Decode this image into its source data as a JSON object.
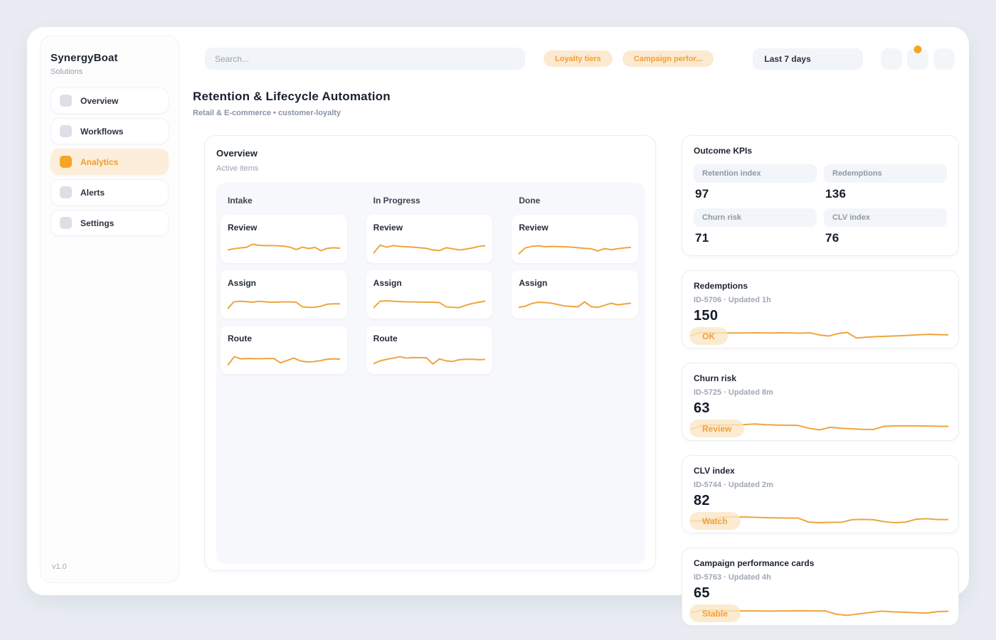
{
  "colors": {
    "accent": "#F0A43C",
    "accent_text": "#EF9D2B",
    "pill_bg": "#FBEAD1",
    "page_bg": "#E9EDF3",
    "board_bg": "#F6F8FB"
  },
  "brand": {
    "name": "SynergyBoat",
    "tagline": "Solutions",
    "version": "v1.0"
  },
  "sidebar": {
    "items": [
      {
        "label": "Overview",
        "active": false
      },
      {
        "label": "Workflows",
        "active": false
      },
      {
        "label": "Analytics",
        "active": true
      },
      {
        "label": "Alerts",
        "active": false
      },
      {
        "label": "Settings",
        "active": false
      }
    ]
  },
  "topbar": {
    "search_placeholder": "Search...",
    "pills": [
      "Loyalty tiers",
      "Campaign perfor..."
    ],
    "range": "Last 7 days"
  },
  "page": {
    "title": "Retention & Lifecycle Automation",
    "subtitle": "Retail & E-commerce • customer-loyalty"
  },
  "board": {
    "title": "Overview",
    "subtitle": "Active items",
    "columns": [
      {
        "name": "Intake",
        "cards": [
          {
            "label": "Review",
            "spark": [
              34,
              40,
              44,
              47,
              63,
              57,
              56,
              56,
              55,
              53,
              48,
              36,
              48,
              41,
              47,
              30,
              42,
              45,
              43
            ]
          },
          {
            "label": "Assign",
            "spark": [
              18,
              52,
              55,
              53,
              50,
              55,
              52,
              50,
              51,
              52,
              52,
              50,
              27,
              24,
              25,
              30,
              40,
              42,
              42
            ]
          },
          {
            "label": "Route",
            "spark": [
              12,
              55,
              44,
              46,
              45,
              45,
              46,
              46,
              24,
              36,
              48,
              34,
              29,
              30,
              35,
              42,
              44,
              43
            ]
          }
        ]
      },
      {
        "name": "In Progress",
        "cards": [
          {
            "label": "Review",
            "spark": [
              18,
              58,
              48,
              56,
              52,
              50,
              48,
              45,
              42,
              34,
              31,
              45,
              40,
              34,
              38,
              44,
              52,
              55
            ]
          },
          {
            "label": "Assign",
            "spark": [
              22,
              55,
              57,
              55,
              53,
              52,
              52,
              51,
              50,
              50,
              48,
              27,
              24,
              23,
              35,
              44,
              50,
              56
            ]
          },
          {
            "label": "Route",
            "spark": [
              20,
              34,
              42,
              48,
              55,
              48,
              51,
              50,
              50,
              18,
              44,
              34,
              31,
              40,
              42,
              42,
              40,
              41
            ]
          }
        ]
      },
      {
        "name": "Done",
        "cards": [
          {
            "label": "Review",
            "spark": [
              14,
              44,
              52,
              55,
              50,
              52,
              51,
              50,
              48,
              45,
              42,
              40,
              29,
              41,
              35,
              40,
              44,
              47
            ]
          },
          {
            "label": "Assign",
            "spark": [
              24,
              30,
              44,
              50,
              48,
              45,
              38,
              31,
              29,
              27,
              52,
              28,
              24,
              34,
              45,
              37,
              41,
              45
            ]
          }
        ]
      }
    ]
  },
  "kpis": {
    "title": "Outcome KPIs",
    "items": [
      {
        "label": "Retention index",
        "value": "97"
      },
      {
        "label": "Redemptions",
        "value": "136"
      },
      {
        "label": "Churn risk",
        "value": "71"
      },
      {
        "label": "CLV index",
        "value": "76"
      }
    ]
  },
  "metrics": [
    {
      "title": "Redemptions",
      "meta": "ID-5706 · Updated 1h",
      "value": "150",
      "badge": "OK",
      "spark": [
        30,
        48,
        46,
        45,
        45,
        45,
        45,
        46,
        45,
        45,
        46,
        45,
        44,
        46,
        34,
        29,
        42,
        48,
        18,
        22,
        25,
        27,
        29,
        31,
        33,
        36,
        38,
        36,
        35
      ]
    },
    {
      "title": "Churn risk",
      "meta": "ID-5725 · Updated 8m",
      "value": "63",
      "badge": "Review",
      "spark": [
        25,
        45,
        48,
        47,
        48,
        50,
        53,
        49,
        47,
        46,
        45,
        30,
        21,
        35,
        30,
        27,
        24,
        23,
        40,
        43,
        43,
        43,
        42,
        41,
        40
      ]
    },
    {
      "title": "CLV index",
      "meta": "ID-5744 · Updated 2m",
      "value": "82",
      "badge": "Watch",
      "spark": [
        28,
        28,
        34,
        50,
        50,
        50,
        48,
        46,
        45,
        44,
        44,
        22,
        19,
        21,
        21,
        35,
        37,
        35,
        25,
        19,
        22,
        38,
        41,
        36,
        36
      ]
    },
    {
      "title": "Campaign performance cards",
      "meta": "ID-5763 · Updated 4h",
      "value": "65",
      "badge": "Stable",
      "spark": [
        33,
        45,
        44,
        43,
        42,
        42,
        42,
        41,
        42,
        42,
        43,
        42,
        42,
        24,
        18,
        26,
        33,
        41,
        37,
        35,
        32,
        30,
        38,
        40
      ]
    }
  ]
}
